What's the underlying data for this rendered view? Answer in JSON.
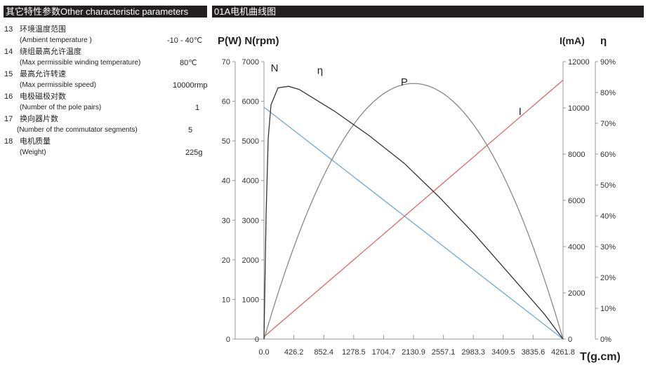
{
  "left_header": "其它特性参数Other characteristic parameters",
  "right_header": "01A电机曲线图",
  "params": [
    {
      "num": "13",
      "cn": "环境温度范围",
      "en": "(Ambient  temperature )",
      "value": "-10 - 40℃"
    },
    {
      "num": "14",
      "cn": "绕组最高允许温度",
      "en": "(Max permissible winding temperature)",
      "value": "80℃"
    },
    {
      "num": "15",
      "cn": "最高允许转速",
      "en": "(Max permissible speed)",
      "value": "10000rmp"
    },
    {
      "num": "16",
      "cn": "电极磁极对数",
      "en": "(Number of  the pole pairs)",
      "value": "1"
    },
    {
      "num": "17",
      "cn": "换向器片数",
      "en": "(Number of the  commutator  segments)",
      "value": "5"
    },
    {
      "num": "18",
      "cn": "电机质量",
      "en": "(Weight)",
      "value": "225g"
    }
  ],
  "chart_data": {
    "type": "line",
    "left_axis_title": "P(W) N(rpm)",
    "right_axis_title_I": "I(mA)",
    "right_axis_title_eta": "η",
    "xlabel": "T(g.cm)",
    "x_ticks": [
      "0.0",
      "426.2",
      "852.4",
      "1278.5",
      "1704.7",
      "2130.9",
      "2557.1",
      "2983.3",
      "3409.5",
      "3835.6",
      "4261.8"
    ],
    "xlim": [
      0,
      4261.8
    ],
    "axes": {
      "P": {
        "range": [
          0,
          70
        ],
        "ticks": [
          "0",
          "10",
          "20",
          "30",
          "40",
          "50",
          "60",
          "70"
        ]
      },
      "N": {
        "range": [
          0,
          7000
        ],
        "ticks": [
          "0",
          "1000",
          "2000",
          "3000",
          "4000",
          "5000",
          "6000",
          "7000"
        ]
      },
      "I": {
        "range": [
          0,
          12000
        ],
        "ticks": [
          "0",
          "2000",
          "4000",
          "6000",
          "8000",
          "10000",
          "12000"
        ]
      },
      "eta": {
        "range": [
          0,
          90
        ],
        "ticks": [
          "0%",
          "10%",
          "20%",
          "30%",
          "40%",
          "50%",
          "60%",
          "70%",
          "80%",
          "90%"
        ]
      }
    },
    "series": [
      {
        "name": "N",
        "axis": "N",
        "color": "#6fa8dc",
        "points": [
          [
            0,
            5850
          ],
          [
            4261.8,
            0
          ]
        ]
      },
      {
        "name": "I",
        "axis": "I",
        "color": "#e06666",
        "points": [
          [
            0,
            100
          ],
          [
            4261.8,
            11200
          ]
        ]
      },
      {
        "name": "P",
        "axis": "P",
        "color": "#888888",
        "points": [
          [
            0,
            0
          ],
          [
            426.2,
            23.2
          ],
          [
            852.4,
            41.3
          ],
          [
            1278.5,
            54.2
          ],
          [
            1704.7,
            61.9
          ],
          [
            2130.9,
            64.5
          ],
          [
            2557.1,
            61.9
          ],
          [
            2983.3,
            54.2
          ],
          [
            3409.5,
            41.3
          ],
          [
            3835.6,
            23.2
          ],
          [
            4261.8,
            0
          ]
        ]
      },
      {
        "name": "η",
        "axis": "eta",
        "color": "#333333",
        "points": [
          [
            0,
            0
          ],
          [
            30,
            40
          ],
          [
            60,
            65
          ],
          [
            100,
            76
          ],
          [
            200,
            81.5
          ],
          [
            350,
            82
          ],
          [
            500,
            81
          ],
          [
            1000,
            74
          ],
          [
            1500,
            66
          ],
          [
            2000,
            57
          ],
          [
            2500,
            46
          ],
          [
            3000,
            34
          ],
          [
            3500,
            21
          ],
          [
            4000,
            8
          ],
          [
            4261.8,
            0
          ]
        ]
      }
    ],
    "curve_labels": [
      {
        "text": "N",
        "t": 150,
        "v": 6750,
        "axis": "N"
      },
      {
        "text": "η",
        "t": 800,
        "v": 86,
        "axis": "eta"
      },
      {
        "text": "P",
        "t": 2000,
        "v": 64,
        "axis": "P"
      },
      {
        "text": "I",
        "t": 3650,
        "v": 9700,
        "axis": "I"
      }
    ]
  }
}
